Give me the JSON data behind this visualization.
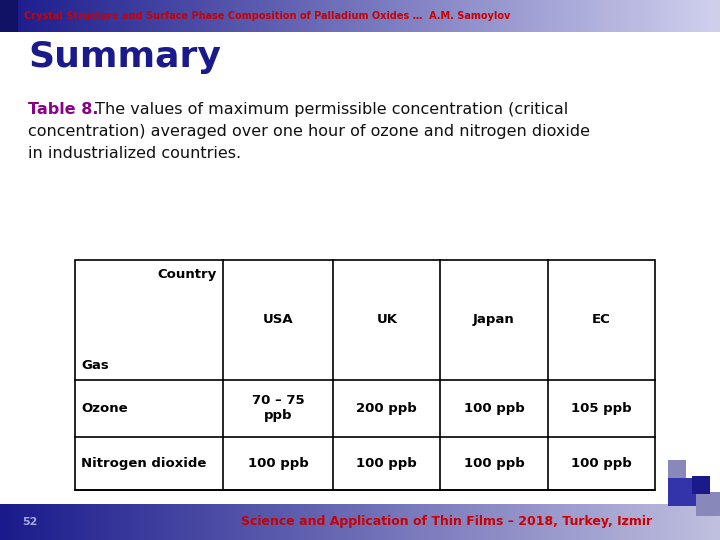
{
  "bg_color": "#ffffff",
  "header_bar_color_left": "#1a1a8c",
  "header_bar_color_right": "#e0e0f5",
  "header_text": "Crystal Structure and Surface Phase Composition of Palladium Oxides …  A.M. Samoylov",
  "header_text_color": "#cc0000",
  "title": "Summary",
  "title_color": "#1a1a8c",
  "caption_bold": "Table 8.",
  "caption_bold_color": "#8b008b",
  "caption_line1": " The values of maximum permissible concentration (critical",
  "caption_line2": "concentration) averaged over one hour of ozone and nitrogen dioxide",
  "caption_line3": "in industrialized countries.",
  "caption_color": "#111111",
  "footer_text": "Science and Application of Thin Films – 2018, Turkey, Izmir",
  "footer_text_color": "#cc0000",
  "footer_bg_left": "#1a1a8c",
  "footer_bg_right": "#c0c0e0",
  "table_rows": [
    [
      "Ozone",
      "70 – 75\nppb",
      "200 ppb",
      "100 ppb",
      "105 ppb"
    ],
    [
      "Nitrogen dioxide",
      "100 ppb",
      "100 ppb",
      "100 ppb",
      "100 ppb"
    ]
  ],
  "corner_square_color": "#3333aa",
  "corner_square2_color": "#8888bb"
}
